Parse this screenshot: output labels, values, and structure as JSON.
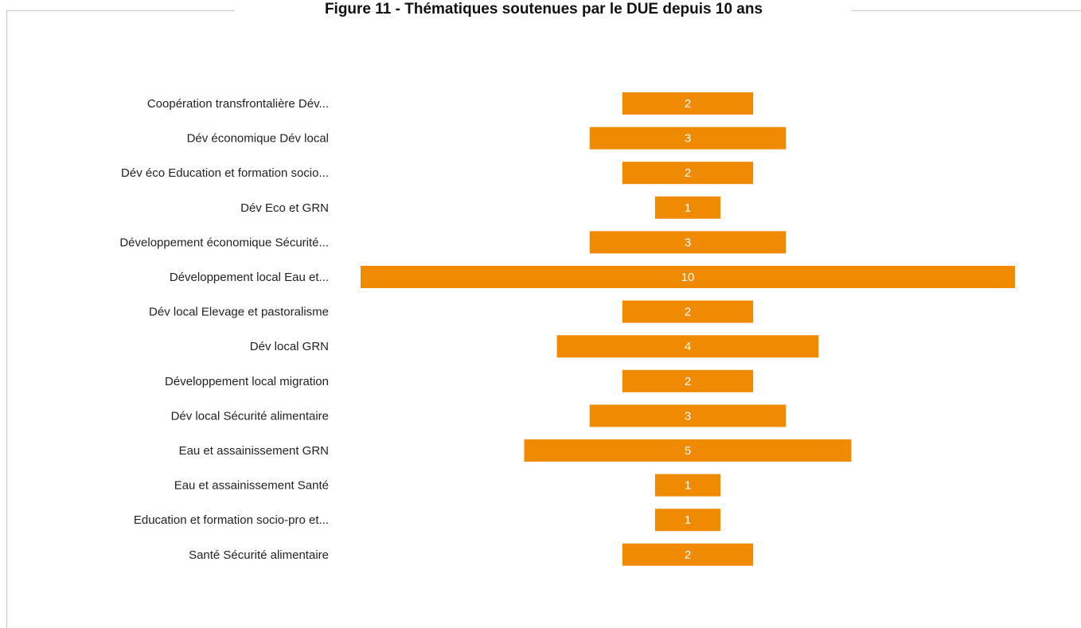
{
  "chart_data": {
    "type": "funnel",
    "title": "Figure 11 - Thématiques soutenues par le DUE depuis 10 ans",
    "categories": [
      "Coopération transfrontalière Dév...",
      "Dév économique Dév local",
      "Dév éco Education et formation socio...",
      "Dév Eco et GRN",
      "Développement économique Sécurité...",
      "Développement local Eau et...",
      "Dév local Elevage et pastoralisme",
      "Dév local GRN",
      "Développement local migration",
      "Dév local Sécurité alimentaire",
      "Eau et assainissement GRN",
      "Eau et assainissement Santé",
      "Education et formation socio-pro et...",
      "Santé Sécurité alimentaire"
    ],
    "values": [
      2,
      3,
      2,
      1,
      3,
      10,
      2,
      4,
      2,
      3,
      5,
      1,
      1,
      2
    ],
    "color": "#f08a00"
  }
}
